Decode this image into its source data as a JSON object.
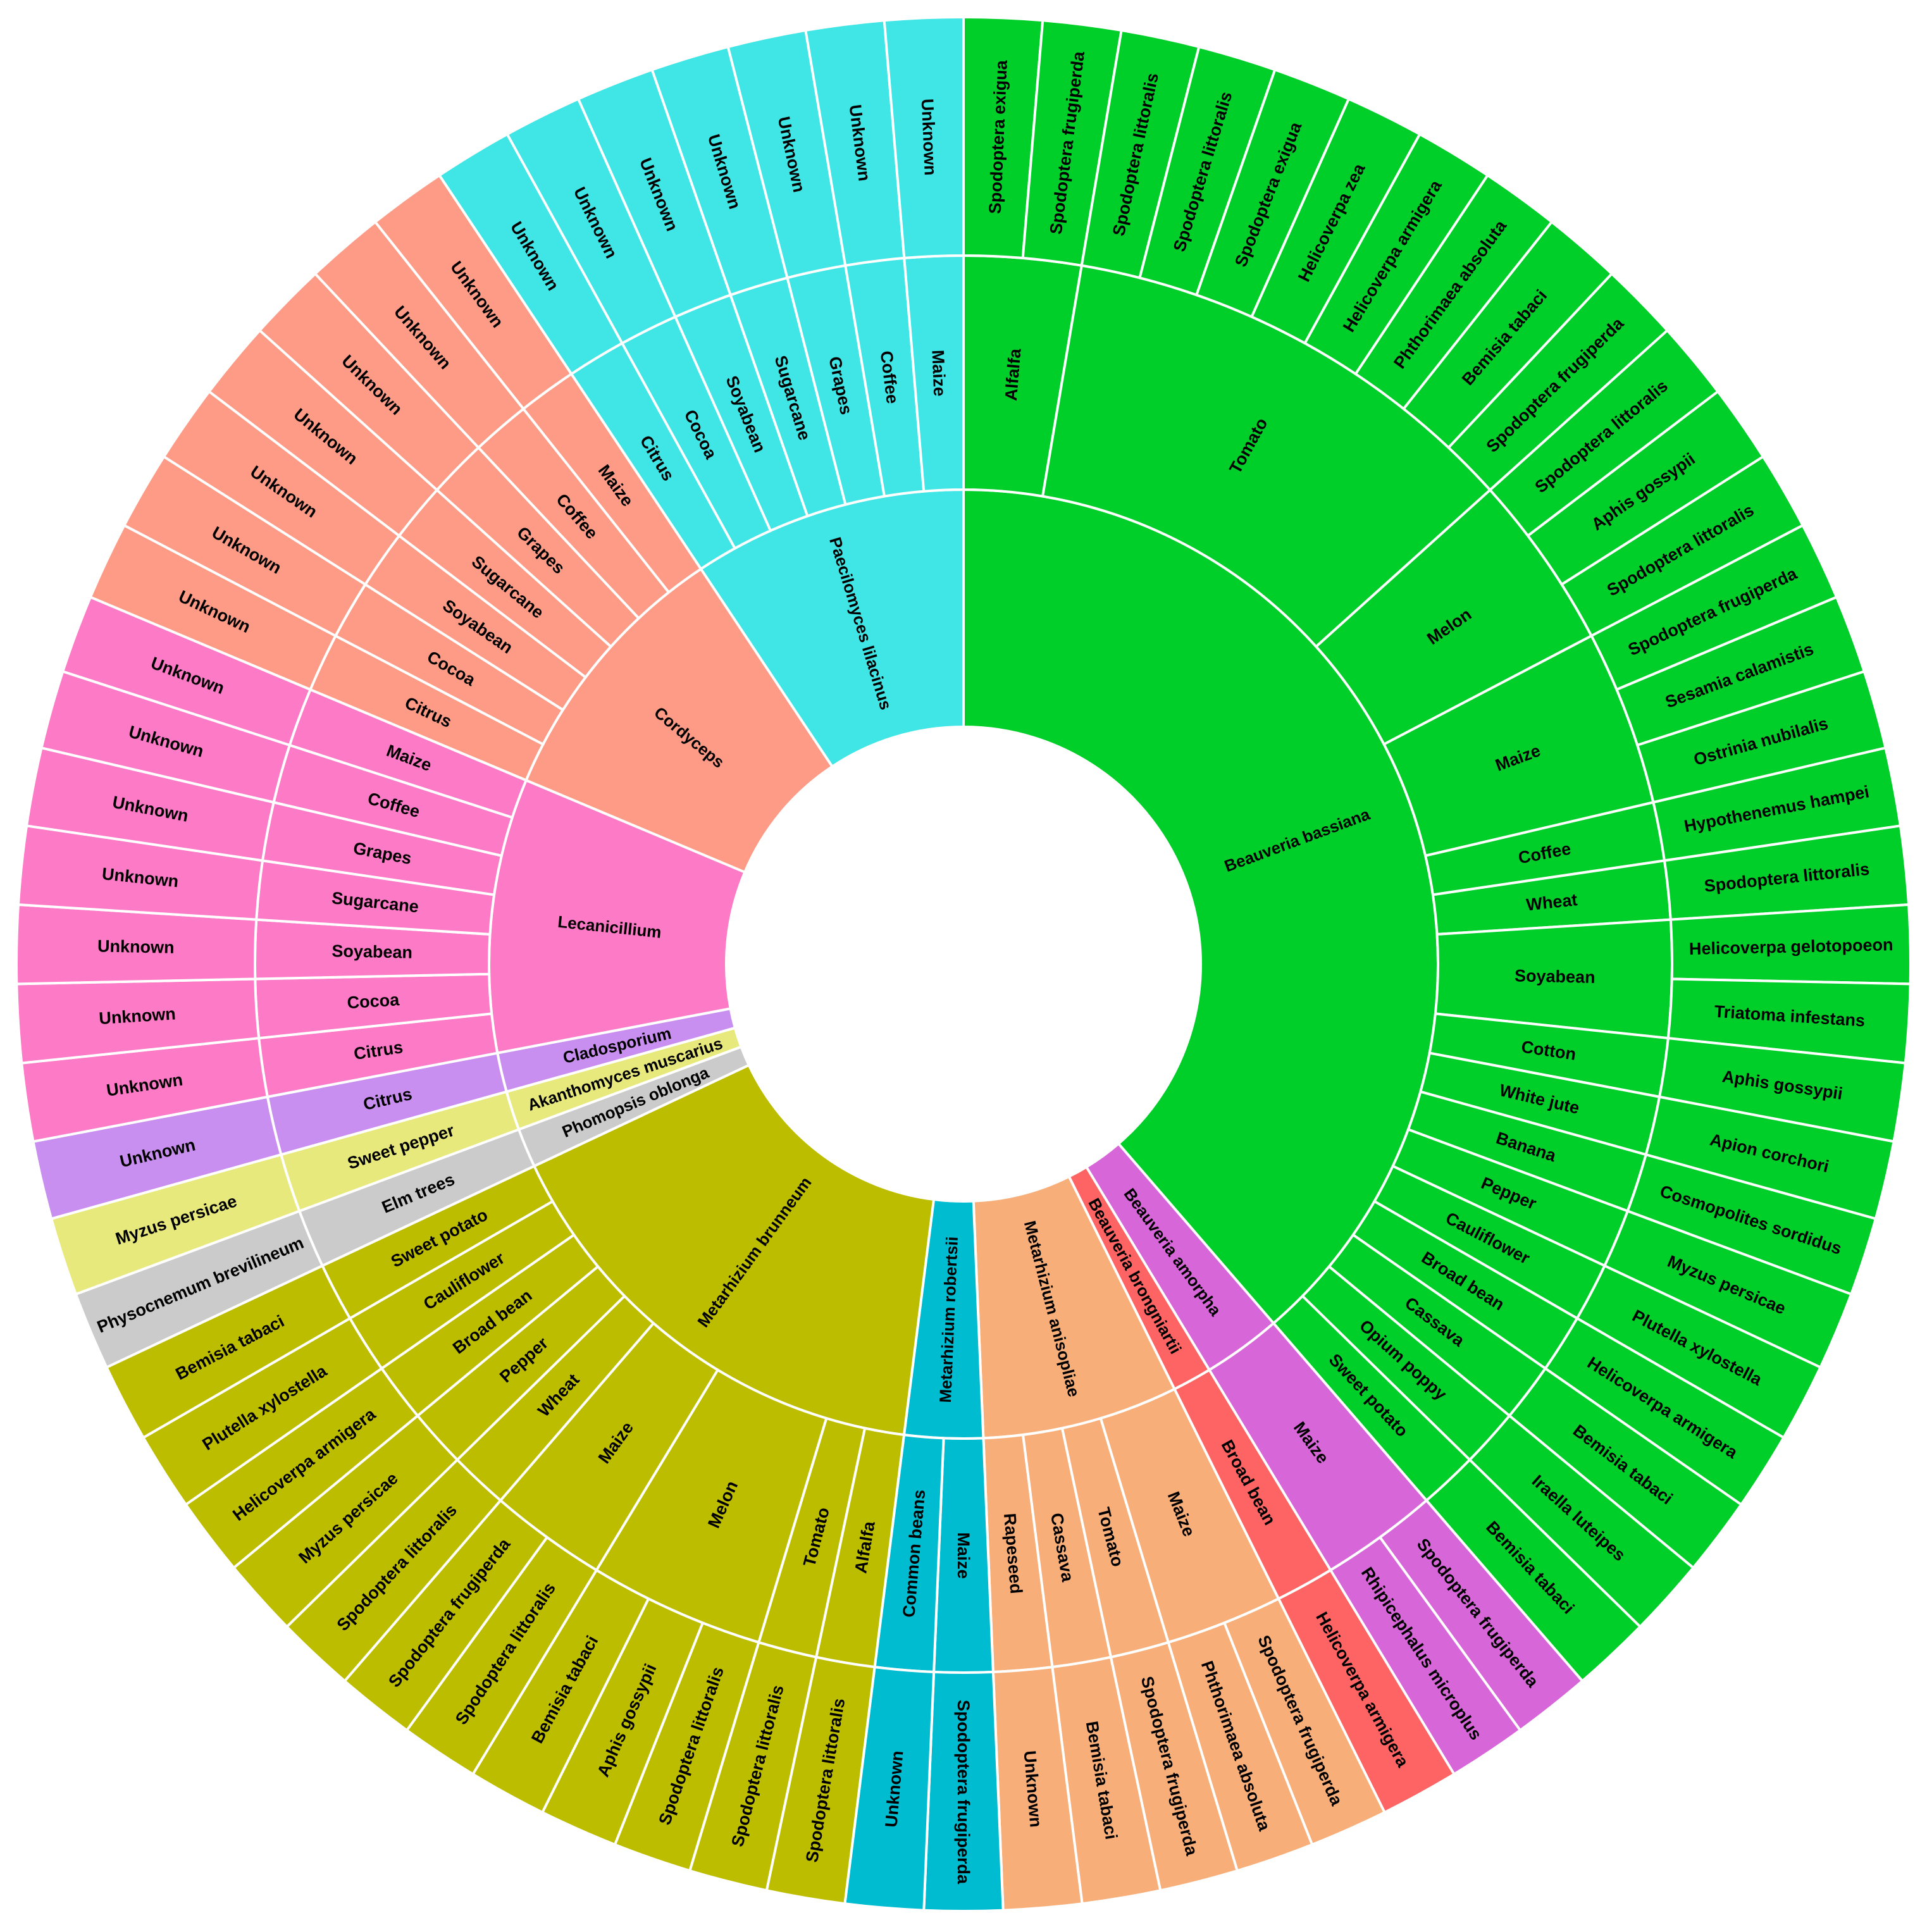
{
  "chart_data": {
    "type": "sunburst",
    "levels": [
      "fungus",
      "crop",
      "pest"
    ],
    "start_angle_deg": 0,
    "direction": "clockwise",
    "colors": {
      "Beauveria bassiana": "#00cf2a",
      "Beauveria amorpha": "#d766d9",
      "Beauveria brongniartii": "#ff6464",
      "Metarhizium anisopliae": "#f7ae79",
      "Metarhizium robertsii": "#00bcd1",
      "Metarhizium brunneum": "#bdbd00",
      "Phomopsis oblonga": "#cbcbcb",
      "Akanthomyces muscarius": "#e8e97d",
      "Cladosporium": "#c98ff0",
      "Lecanicillium": "#fd7ac7",
      "Cordyceps": "#fd9b87",
      "Paecilomyces lilacinus": "#40e5e5"
    },
    "hierarchy": [
      {
        "name": "Beauveria bassiana",
        "children": [
          {
            "name": "Alfalfa",
            "children": [
              {
                "name": "Spodoptera exigua"
              },
              {
                "name": "Spodoptera frugiperda"
              }
            ]
          },
          {
            "name": "Tomato",
            "children": [
              {
                "name": "Spodoptera littoralis"
              },
              {
                "name": "Spodoptera littoralis"
              },
              {
                "name": "Spodoptera exigua"
              },
              {
                "name": "Helicoverpa zea"
              },
              {
                "name": "Helicoverpa armigera"
              },
              {
                "name": "Phthorimaea absoluta"
              },
              {
                "name": "Bemisia tabaci"
              },
              {
                "name": "Spodoptera frugiperda"
              }
            ]
          },
          {
            "name": "Melon",
            "children": [
              {
                "name": "Spodoptera littoralis"
              },
              {
                "name": "Aphis gossypii"
              },
              {
                "name": "Spodoptera littoralis"
              }
            ]
          },
          {
            "name": "Maize",
            "children": [
              {
                "name": "Spodoptera frugiperda"
              },
              {
                "name": "Sesamia calamistis"
              },
              {
                "name": "Ostrinia nubilalis"
              }
            ]
          },
          {
            "name": "Coffee",
            "children": [
              {
                "name": "Hypothenemus hampei"
              }
            ]
          },
          {
            "name": "Wheat",
            "children": [
              {
                "name": "Spodoptera littoralis"
              }
            ]
          },
          {
            "name": "Soyabean",
            "children": [
              {
                "name": "Helicoverpa gelotopoeon"
              },
              {
                "name": "Triatoma infestans"
              }
            ]
          },
          {
            "name": "Cotton",
            "children": [
              {
                "name": "Aphis gossypii"
              }
            ]
          },
          {
            "name": "White jute",
            "children": [
              {
                "name": "Apion corchori"
              }
            ]
          },
          {
            "name": "Banana",
            "children": [
              {
                "name": "Cosmopolites sordidus"
              }
            ]
          },
          {
            "name": "Pepper",
            "children": [
              {
                "name": "Myzus persicae"
              }
            ]
          },
          {
            "name": "Cauliflower",
            "children": [
              {
                "name": "Plutella xylostella"
              }
            ]
          },
          {
            "name": "Broad bean",
            "children": [
              {
                "name": "Helicoverpa armigera"
              }
            ]
          },
          {
            "name": "Cassava",
            "children": [
              {
                "name": "Bemisia tabaci"
              }
            ]
          },
          {
            "name": "Opium poppy",
            "children": [
              {
                "name": "Iraella luteipes"
              }
            ]
          },
          {
            "name": "Sweet potato",
            "children": [
              {
                "name": "Bemisia tabaci"
              }
            ]
          }
        ]
      },
      {
        "name": "Beauveria amorpha",
        "children": [
          {
            "name": "Maize",
            "children": [
              {
                "name": "Spodoptera frugiperda"
              },
              {
                "name": "Rhipicephalus microplus"
              }
            ]
          }
        ]
      },
      {
        "name": "Beauveria brongniartii",
        "children": [
          {
            "name": "Broad bean",
            "children": [
              {
                "name": "Helicoverpa armigera"
              }
            ]
          }
        ]
      },
      {
        "name": "Metarhizium anisopliae",
        "children": [
          {
            "name": "Maize",
            "children": [
              {
                "name": "Spodoptera frugiperda"
              },
              {
                "name": "Phthorimaea absoluta"
              }
            ]
          },
          {
            "name": "Tomato",
            "children": [
              {
                "name": "Spodoptera frugiperda"
              }
            ]
          },
          {
            "name": "Cassava",
            "children": [
              {
                "name": "Bemisia tabaci"
              }
            ]
          },
          {
            "name": "Rapeseed",
            "children": [
              {
                "name": "Unknown"
              }
            ]
          }
        ]
      },
      {
        "name": "Metarhizium robertsii",
        "children": [
          {
            "name": "Maize",
            "children": [
              {
                "name": "Spodoptera frugiperda"
              }
            ]
          },
          {
            "name": "Common beans",
            "children": [
              {
                "name": "Unknown"
              }
            ]
          }
        ]
      },
      {
        "name": "Metarhizium brunneum",
        "children": [
          {
            "name": "Alfalfa",
            "children": [
              {
                "name": "Spodoptera littoralis"
              }
            ]
          },
          {
            "name": "Tomato",
            "children": [
              {
                "name": "Spodoptera littoralis"
              }
            ]
          },
          {
            "name": "Melon",
            "children": [
              {
                "name": "Spodoptera littoralis"
              },
              {
                "name": "Aphis gossypii"
              },
              {
                "name": "Bemisia tabaci"
              }
            ]
          },
          {
            "name": "Maize",
            "children": [
              {
                "name": "Spodoptera littoralis"
              },
              {
                "name": "Spodoptera frugiperda"
              }
            ]
          },
          {
            "name": "Wheat",
            "children": [
              {
                "name": "Spodoptera littoralis"
              }
            ]
          },
          {
            "name": "Pepper",
            "children": [
              {
                "name": "Myzus persicae"
              }
            ]
          },
          {
            "name": "Broad bean",
            "children": [
              {
                "name": "Helicoverpa armigera"
              }
            ]
          },
          {
            "name": "Cauliflower",
            "children": [
              {
                "name": "Plutella xylostella"
              }
            ]
          },
          {
            "name": "Sweet potato",
            "children": [
              {
                "name": "Bemisia tabaci"
              }
            ]
          }
        ]
      },
      {
        "name": "Phomopsis oblonga",
        "children": [
          {
            "name": "Elm trees",
            "children": [
              {
                "name": "Physocnemum brevilineum"
              }
            ]
          }
        ]
      },
      {
        "name": "Akanthomyces muscarius",
        "children": [
          {
            "name": "Sweet pepper",
            "children": [
              {
                "name": "Myzus persicae"
              }
            ]
          }
        ]
      },
      {
        "name": "Cladosporium",
        "children": [
          {
            "name": "Citrus",
            "children": [
              {
                "name": "Unknown"
              }
            ]
          }
        ]
      },
      {
        "name": "Lecanicillium",
        "children": [
          {
            "name": "Citrus",
            "children": [
              {
                "name": "Unknown"
              }
            ]
          },
          {
            "name": "Cocoa",
            "children": [
              {
                "name": "Unknown"
              }
            ]
          },
          {
            "name": "Soyabean",
            "children": [
              {
                "name": "Unknown"
              }
            ]
          },
          {
            "name": "Sugarcane",
            "children": [
              {
                "name": "Unknown"
              }
            ]
          },
          {
            "name": "Grapes",
            "children": [
              {
                "name": "Unknown"
              }
            ]
          },
          {
            "name": "Coffee",
            "children": [
              {
                "name": "Unknown"
              }
            ]
          },
          {
            "name": "Maize",
            "children": [
              {
                "name": "Unknown"
              }
            ]
          }
        ]
      },
      {
        "name": "Cordyceps",
        "children": [
          {
            "name": "Citrus",
            "children": [
              {
                "name": "Unknown"
              }
            ]
          },
          {
            "name": "Cocoa",
            "children": [
              {
                "name": "Unknown"
              }
            ]
          },
          {
            "name": "Soyabean",
            "children": [
              {
                "name": "Unknown"
              }
            ]
          },
          {
            "name": "Sugarcane",
            "children": [
              {
                "name": "Unknown"
              }
            ]
          },
          {
            "name": "Grapes",
            "children": [
              {
                "name": "Unknown"
              }
            ]
          },
          {
            "name": "Coffee",
            "children": [
              {
                "name": "Unknown"
              }
            ]
          },
          {
            "name": "Maize",
            "children": [
              {
                "name": "Unknown"
              }
            ]
          }
        ]
      },
      {
        "name": "Paecilomyces lilacinus",
        "children": [
          {
            "name": "Citrus",
            "children": [
              {
                "name": "Unknown"
              }
            ]
          },
          {
            "name": "Cocoa",
            "children": [
              {
                "name": "Unknown"
              }
            ]
          },
          {
            "name": "Soyabean",
            "children": [
              {
                "name": "Unknown"
              }
            ]
          },
          {
            "name": "Sugarcane",
            "children": [
              {
                "name": "Unknown"
              }
            ]
          },
          {
            "name": "Grapes",
            "children": [
              {
                "name": "Unknown"
              }
            ]
          },
          {
            "name": "Coffee",
            "children": [
              {
                "name": "Unknown"
              }
            ]
          },
          {
            "name": "Maize",
            "children": [
              {
                "name": "Unknown"
              }
            ]
          }
        ]
      }
    ]
  }
}
